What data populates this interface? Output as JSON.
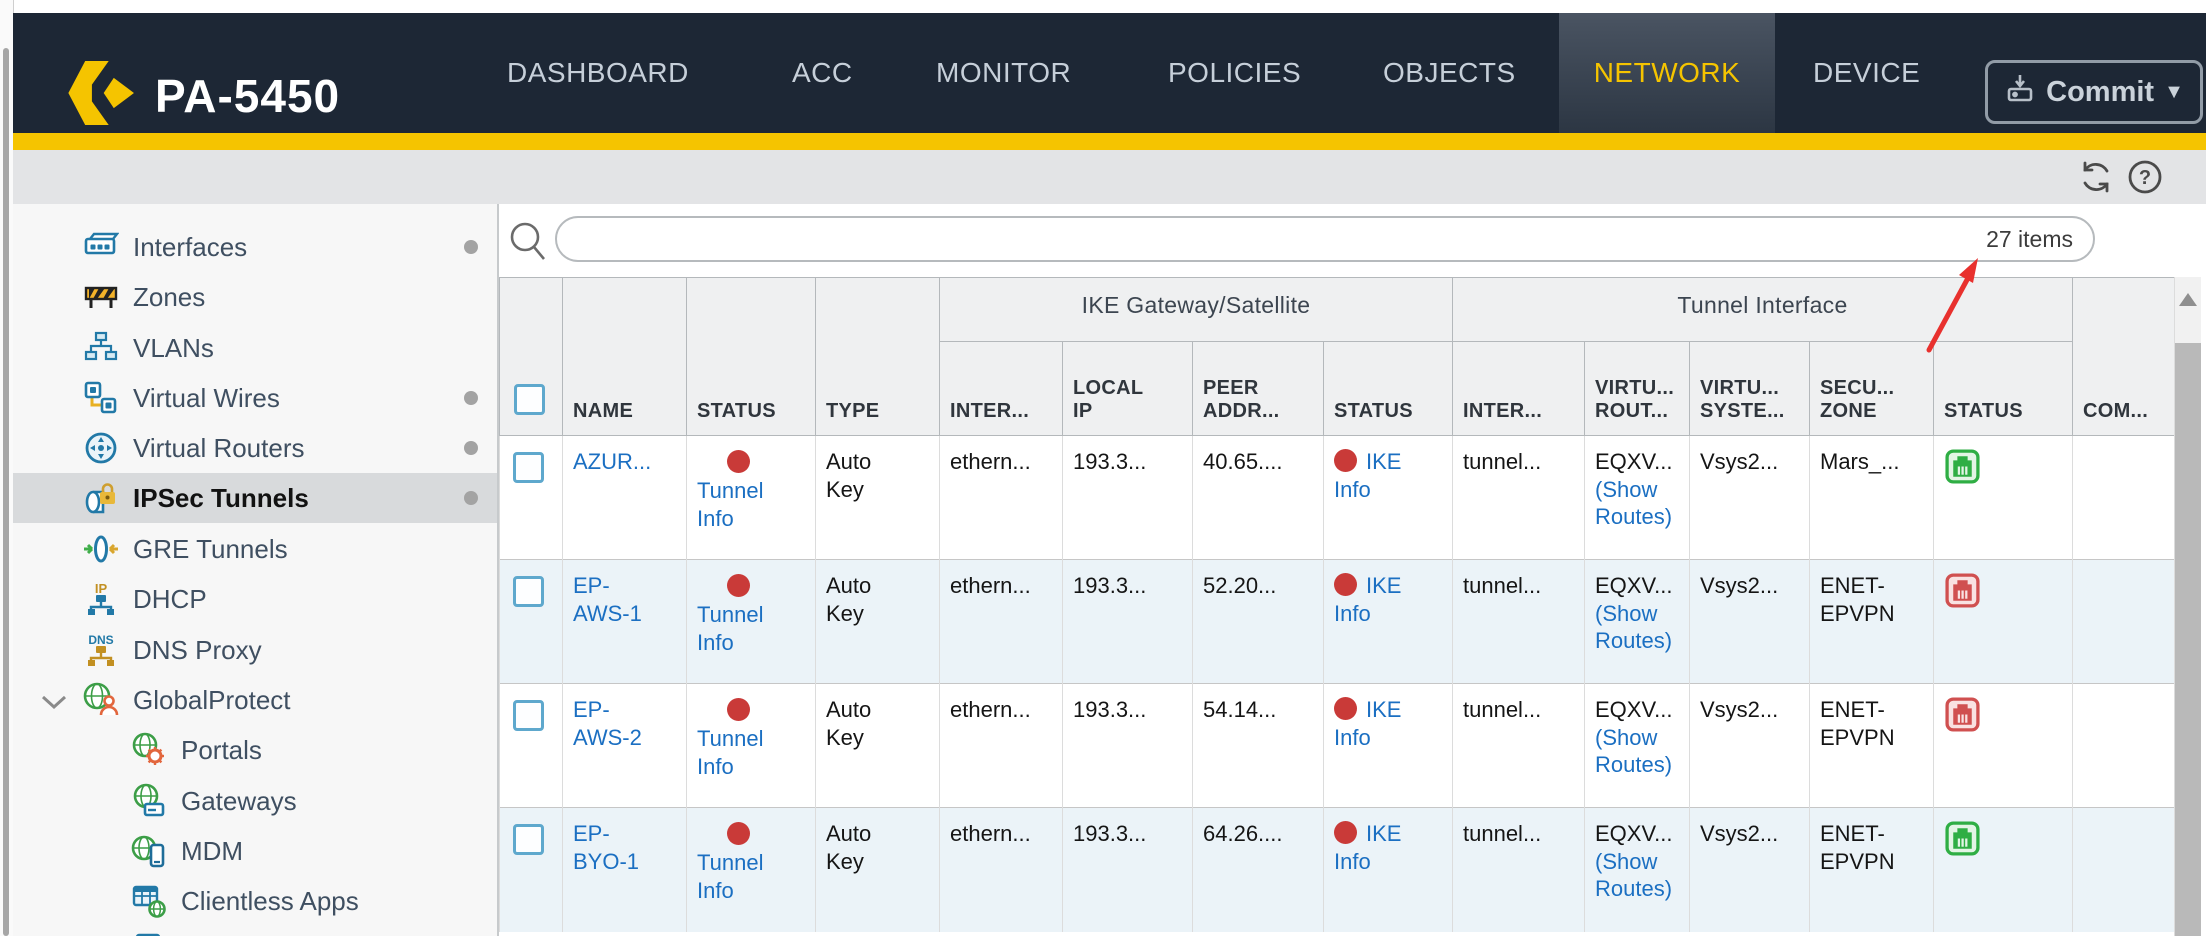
{
  "app": {
    "title": "PA-5450",
    "commit_label": "Commit"
  },
  "nav": {
    "items": [
      {
        "label": "DASHBOARD"
      },
      {
        "label": "ACC"
      },
      {
        "label": "MONITOR"
      },
      {
        "label": "POLICIES"
      },
      {
        "label": "OBJECTS"
      },
      {
        "label": "NETWORK"
      },
      {
        "label": "DEVICE"
      }
    ],
    "active": "NETWORK",
    "accent_color": "#f5c400"
  },
  "sidebar": {
    "items": [
      {
        "label": "Interfaces",
        "icon": "interfaces-icon",
        "dot": true
      },
      {
        "label": "Zones",
        "icon": "zones-icon"
      },
      {
        "label": "VLANs",
        "icon": "vlans-icon"
      },
      {
        "label": "Virtual Wires",
        "icon": "virtual-wires-icon",
        "dot": true
      },
      {
        "label": "Virtual Routers",
        "icon": "virtual-routers-icon",
        "dot": true
      },
      {
        "label": "IPSec Tunnels",
        "icon": "ipsec-tunnels-icon",
        "dot": true,
        "selected": true
      },
      {
        "label": "GRE Tunnels",
        "icon": "gre-tunnels-icon"
      },
      {
        "label": "DHCP",
        "icon": "dhcp-icon"
      },
      {
        "label": "DNS Proxy",
        "icon": "dns-proxy-icon"
      },
      {
        "label": "GlobalProtect",
        "icon": "globalprotect-icon",
        "expanded": true
      },
      {
        "label": "Portals",
        "icon": "portals-icon",
        "indent": true
      },
      {
        "label": "Gateways",
        "icon": "gateways-icon",
        "indent": true
      },
      {
        "label": "MDM",
        "icon": "mdm-icon",
        "indent": true
      },
      {
        "label": "Clientless Apps",
        "icon": "clientless-apps-icon",
        "indent": true
      }
    ]
  },
  "search": {
    "items_count": "27 items"
  },
  "table": {
    "groups": {
      "ike": "IKE Gateway/Satellite",
      "tunnel": "Tunnel Interface"
    },
    "columns": {
      "name": "NAME",
      "status": "STATUS",
      "type": "TYPE",
      "ike_interface": "INTER...",
      "local_ip": "LOCAL IP",
      "peer_address": "PEER ADDR...",
      "ike_status": "STATUS",
      "tunnel_interface": "INTER...",
      "virtual_router": "VIRTU... ROUT...",
      "virtual_system": "VIRTU... SYSTE...",
      "security_zone": "SECU... ZONE",
      "interface_state": "STATUS",
      "comment": "COM..."
    },
    "rows": [
      {
        "name": "AZUR...",
        "tunnel_status_link": "Tunnel Info",
        "type": "Auto Key",
        "ike_interface": "ethern...",
        "local_ip": "193.3...",
        "peer_address": "40.65....",
        "ike_status_link": "IKE Info",
        "tunnel_interface": "tunnel...",
        "virtual_router": "EQXV...",
        "virtual_router_link": "(Show Routes)",
        "virtual_system": "Vsys2...",
        "security_zone": "Mars_...",
        "interface_state": "up",
        "comment": ""
      },
      {
        "name": "EP-AWS-1",
        "tunnel_status_link": "Tunnel Info",
        "type": "Auto Key",
        "ike_interface": "ethern...",
        "local_ip": "193.3...",
        "peer_address": "52.20...",
        "ike_status_link": "IKE Info",
        "tunnel_interface": "tunnel...",
        "virtual_router": "EQXV...",
        "virtual_router_link": "(Show Routes)",
        "virtual_system": "Vsys2...",
        "security_zone": "ENET-EPVPN",
        "interface_state": "down",
        "comment": ""
      },
      {
        "name": "EP-AWS-2",
        "tunnel_status_link": "Tunnel Info",
        "type": "Auto Key",
        "ike_interface": "ethern...",
        "local_ip": "193.3...",
        "peer_address": "54.14...",
        "ike_status_link": "IKE Info",
        "tunnel_interface": "tunnel...",
        "virtual_router": "EQXV...",
        "virtual_router_link": "(Show Routes)",
        "virtual_system": "Vsys2...",
        "security_zone": "ENET-EPVPN",
        "interface_state": "down",
        "comment": ""
      },
      {
        "name": "EP-BYO-1",
        "tunnel_status_link": "Tunnel Info",
        "type": "Auto Key",
        "ike_interface": "ethern...",
        "local_ip": "193.3...",
        "peer_address": "64.26....",
        "ike_status_link": "IKE Info",
        "tunnel_interface": "tunnel...",
        "virtual_router": "EQXV...",
        "virtual_router_link": "(Show Routes)",
        "virtual_system": "Vsys2...",
        "security_zone": "ENET-EPVPN",
        "interface_state": "up",
        "comment": ""
      }
    ],
    "status_colors": {
      "up": "#2fae44",
      "down": "#d05050",
      "ike_dot": "#c93a38"
    }
  },
  "annotation": {
    "arrow_color": "#e8312e",
    "points_at": "27 items"
  }
}
